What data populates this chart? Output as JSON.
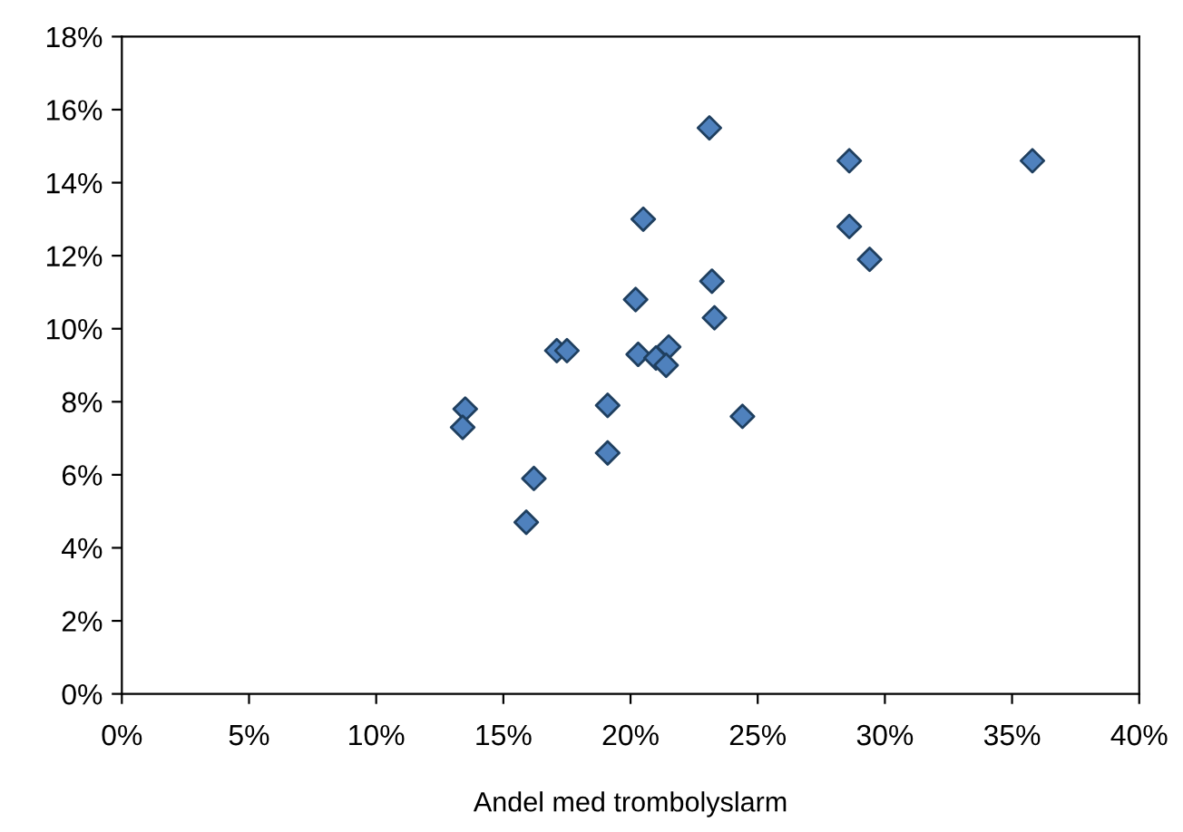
{
  "chart_data": {
    "type": "scatter",
    "xlabel": "Andel med trombolyslarm",
    "x": [
      23.1,
      20.5,
      23.2,
      20.2,
      23.3,
      17.1,
      17.5,
      20.3,
      21.0,
      21.5,
      21.4,
      13.5,
      13.4,
      19.1,
      24.4,
      19.1,
      16.2,
      15.9,
      28.6,
      35.8,
      28.6,
      29.4
    ],
    "values": [
      15.5,
      13.0,
      11.3,
      10.8,
      10.3,
      9.4,
      9.4,
      9.3,
      9.2,
      9.5,
      9.0,
      7.8,
      7.3,
      7.9,
      7.6,
      6.6,
      5.9,
      4.7,
      14.6,
      14.6,
      12.8,
      11.9
    ],
    "color": "#4f81bd",
    "marker": "diamond",
    "grid": false,
    "legend": false,
    "xlim": [
      0,
      40
    ],
    "ylim": [
      0,
      18
    ],
    "xticks": [
      {
        "value": 0,
        "label": "0%"
      },
      {
        "value": 5,
        "label": "5%"
      },
      {
        "value": 10,
        "label": "10%"
      },
      {
        "value": 15,
        "label": "15%"
      },
      {
        "value": 20,
        "label": "20%"
      },
      {
        "value": 25,
        "label": "25%"
      },
      {
        "value": 30,
        "label": "30%"
      },
      {
        "value": 35,
        "label": "35%"
      },
      {
        "value": 40,
        "label": "40%"
      }
    ],
    "yticks": [
      {
        "value": 0,
        "label": "0%"
      },
      {
        "value": 2,
        "label": "2%"
      },
      {
        "value": 4,
        "label": "4%"
      },
      {
        "value": 6,
        "label": "6%"
      },
      {
        "value": 8,
        "label": "8%"
      },
      {
        "value": 10,
        "label": "10%"
      },
      {
        "value": 12,
        "label": "12%"
      },
      {
        "value": 14,
        "label": "14%"
      },
      {
        "value": 16,
        "label": "16%"
      },
      {
        "value": 18,
        "label": "18%"
      }
    ]
  }
}
